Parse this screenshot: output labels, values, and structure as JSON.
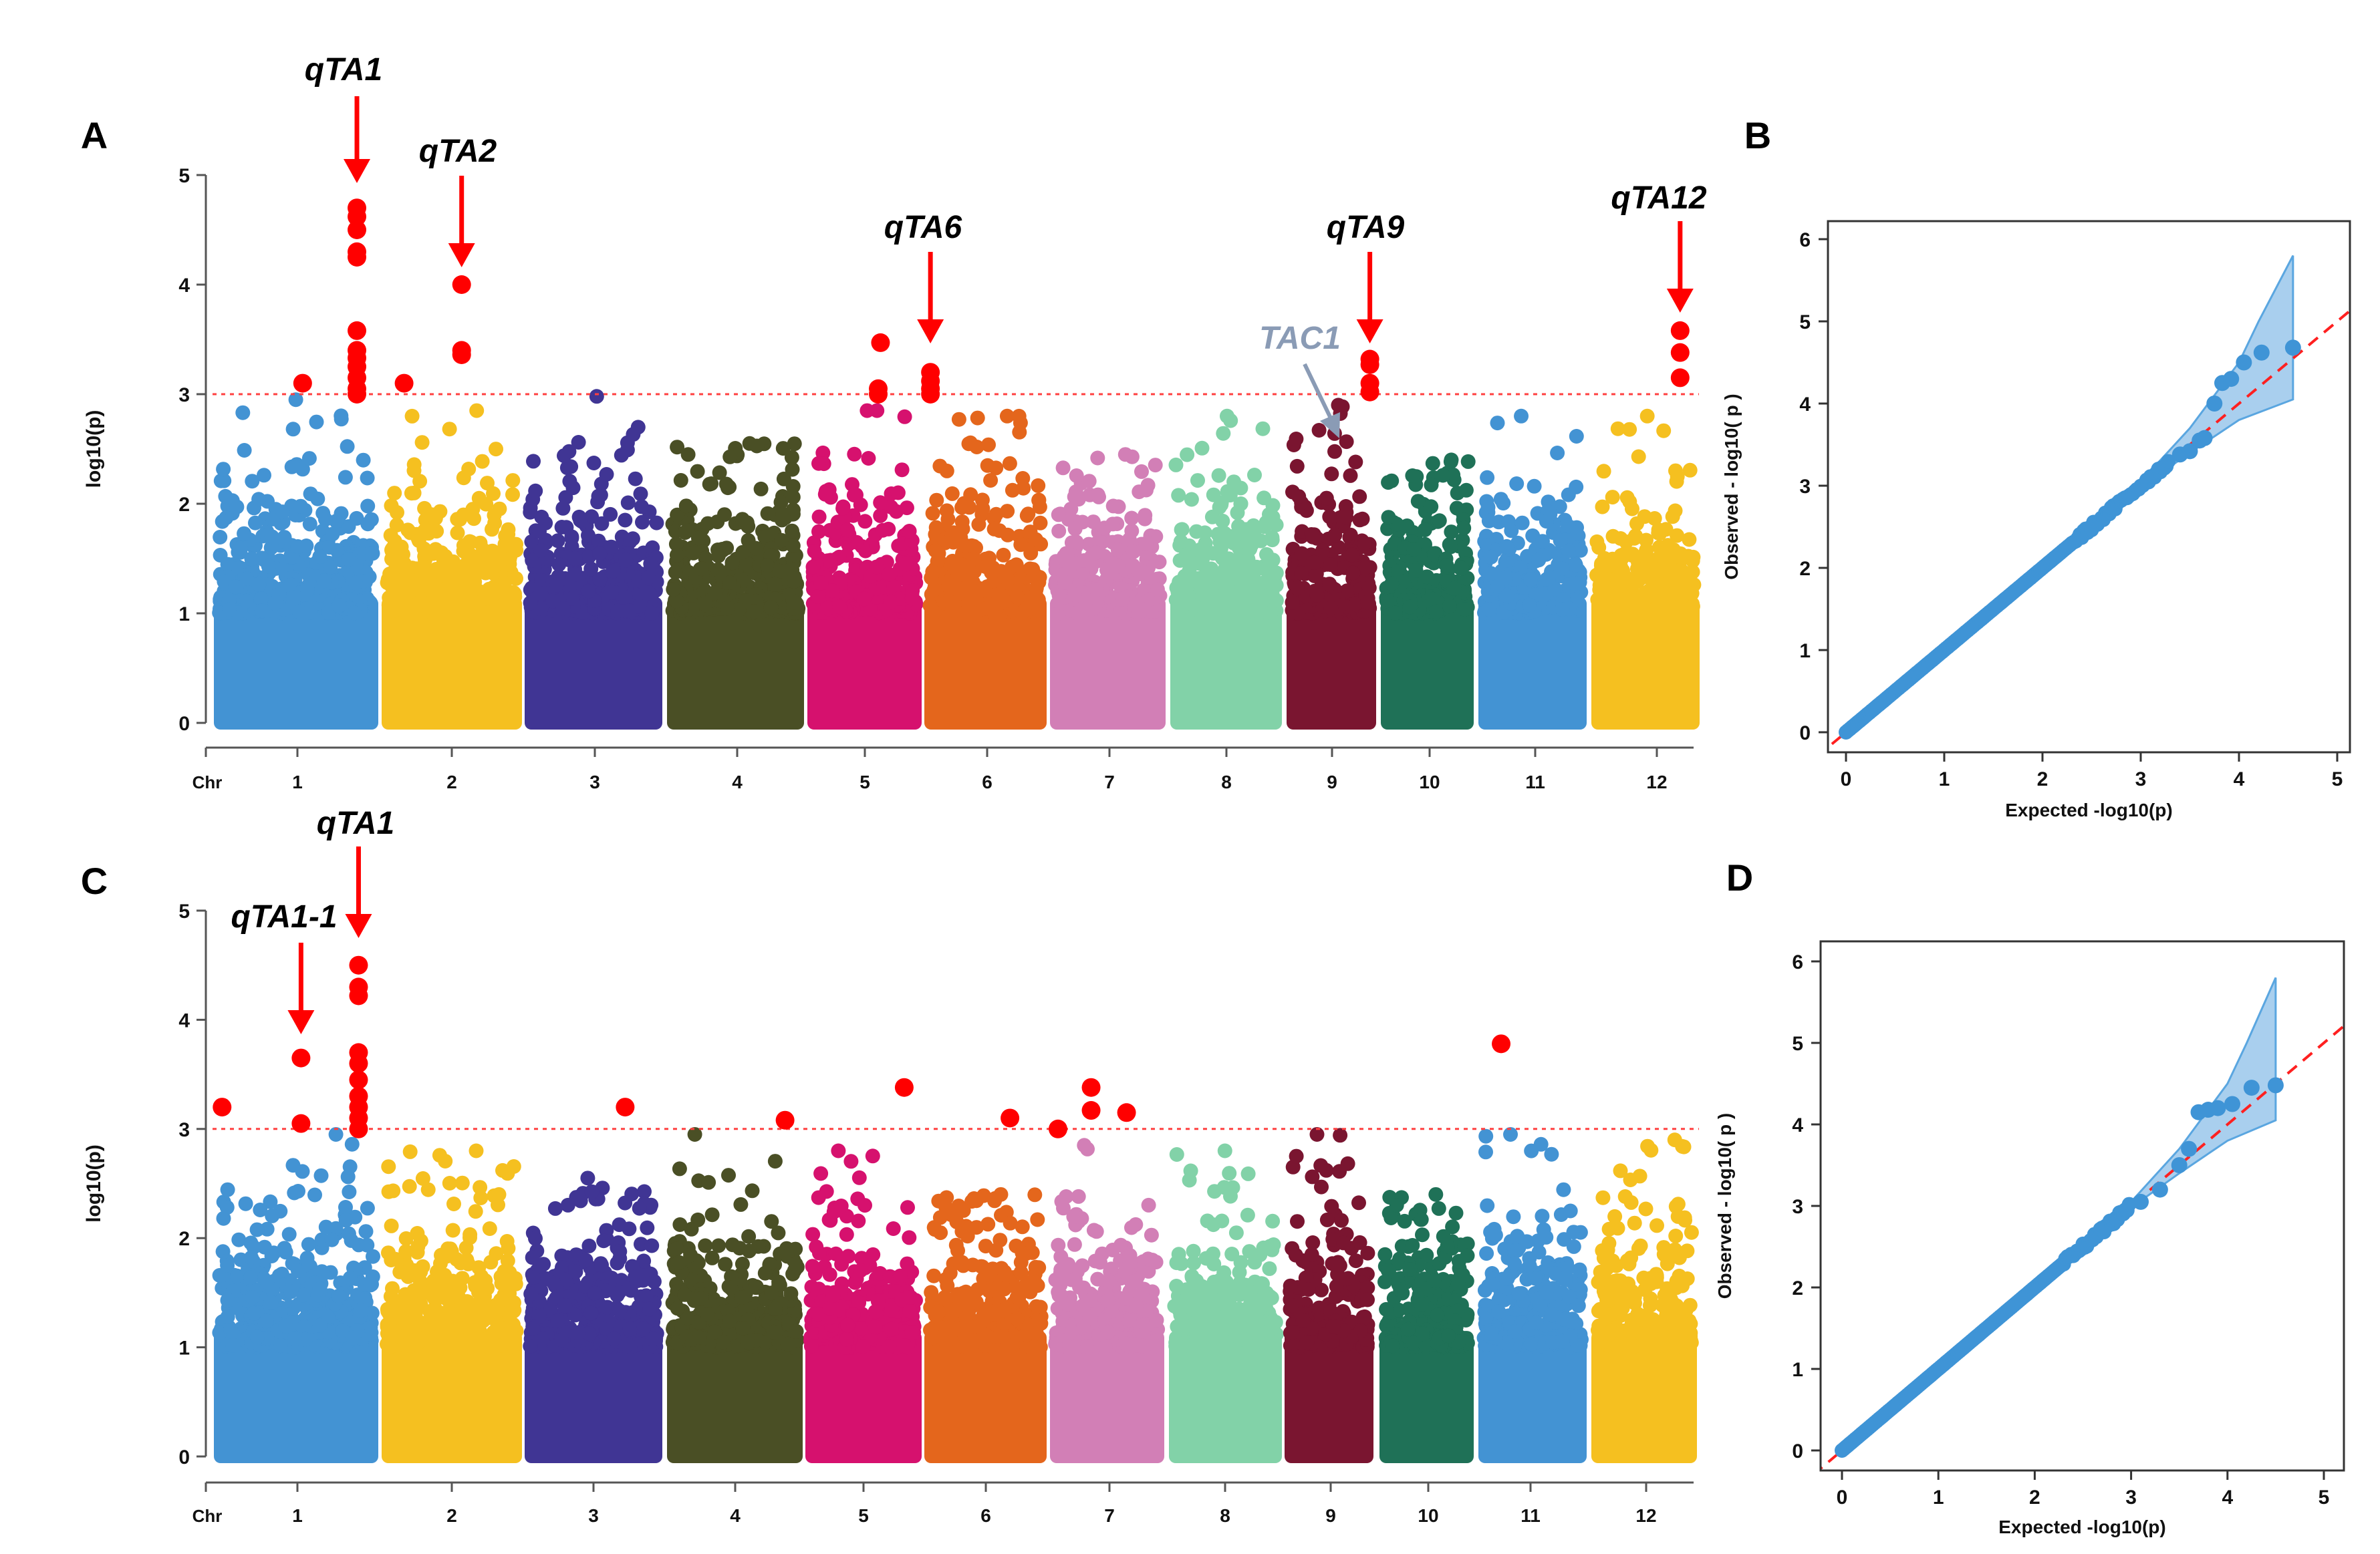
{
  "chart_data": [
    {
      "panel": "A",
      "type": "scatter",
      "subtype": "manhattan",
      "ylabel": "log10(p)",
      "xlabel_prefix": "Chr",
      "ylim": [
        0,
        5
      ],
      "yticks": [
        "0",
        "1",
        "2",
        "3",
        "4",
        "5"
      ],
      "threshold": 3,
      "chromosomes": [
        "1",
        "2",
        "3",
        "4",
        "5",
        "6",
        "7",
        "8",
        "9",
        "10",
        "11",
        "12"
      ],
      "chromosome_colors": [
        "#4393d3",
        "#f5c020",
        "#403594",
        "#4a4f25",
        "#d6116e",
        "#e4661c",
        "#d27fb6",
        "#82d2a8",
        "#7a1530",
        "#1f7157",
        "#4393d3",
        "#f5c020"
      ],
      "max_nonsignificant_y": [
        2.95,
        2.85,
        2.98,
        2.55,
        2.85,
        2.8,
        2.45,
        2.8,
        2.9,
        2.4,
        2.8,
        2.8
      ],
      "significant_color": "#ff0000",
      "significant_points": [
        {
          "chr": 1,
          "pos": 0.54,
          "y": 3.1
        },
        {
          "chr": 1,
          "pos": 0.87,
          "y": 4.7
        },
        {
          "chr": 1,
          "pos": 0.87,
          "y": 4.62
        },
        {
          "chr": 1,
          "pos": 0.87,
          "y": 4.5
        },
        {
          "chr": 1,
          "pos": 0.87,
          "y": 4.3
        },
        {
          "chr": 1,
          "pos": 0.87,
          "y": 4.25
        },
        {
          "chr": 1,
          "pos": 0.87,
          "y": 3.58
        },
        {
          "chr": 1,
          "pos": 0.87,
          "y": 3.4
        },
        {
          "chr": 1,
          "pos": 0.87,
          "y": 3.33
        },
        {
          "chr": 1,
          "pos": 0.87,
          "y": 3.25
        },
        {
          "chr": 1,
          "pos": 0.87,
          "y": 3.15
        },
        {
          "chr": 1,
          "pos": 0.87,
          "y": 3.05
        },
        {
          "chr": 1,
          "pos": 0.87,
          "y": 3.0
        },
        {
          "chr": 2,
          "pos": 0.16,
          "y": 3.1
        },
        {
          "chr": 2,
          "pos": 0.57,
          "y": 4.0
        },
        {
          "chr": 2,
          "pos": 0.57,
          "y": 3.4
        },
        {
          "chr": 2,
          "pos": 0.57,
          "y": 3.36
        },
        {
          "chr": 5,
          "pos": 0.64,
          "y": 3.47
        },
        {
          "chr": 5,
          "pos": 0.62,
          "y": 3.05
        },
        {
          "chr": 5,
          "pos": 0.62,
          "y": 3.0
        },
        {
          "chr": 6,
          "pos": 0.05,
          "y": 3.2
        },
        {
          "chr": 6,
          "pos": 0.05,
          "y": 3.12
        },
        {
          "chr": 6,
          "pos": 0.05,
          "y": 3.05
        },
        {
          "chr": 6,
          "pos": 0.05,
          "y": 3.0
        },
        {
          "chr": 9,
          "pos": 0.93,
          "y": 3.32
        },
        {
          "chr": 9,
          "pos": 0.93,
          "y": 3.27
        },
        {
          "chr": 9,
          "pos": 0.93,
          "y": 3.1
        },
        {
          "chr": 9,
          "pos": 0.93,
          "y": 3.02
        },
        {
          "chr": 12,
          "pos": 0.82,
          "y": 3.58
        },
        {
          "chr": 12,
          "pos": 0.82,
          "y": 3.38
        },
        {
          "chr": 12,
          "pos": 0.82,
          "y": 3.15
        }
      ],
      "annotations": [
        {
          "label": "qTA1",
          "chr": 1,
          "pos": 0.87
        },
        {
          "label": "qTA2",
          "chr": 2,
          "pos": 0.57
        },
        {
          "label": "qTA6",
          "chr": 6,
          "pos": 0.05
        },
        {
          "label": "qTA9",
          "chr": 9,
          "pos": 0.93
        },
        {
          "label": "qTA12",
          "chr": 12,
          "pos": 0.82
        }
      ],
      "gene_annotation": {
        "label": "TAC1",
        "chr": 9,
        "pos": 0.6,
        "y": 2.55,
        "color": "#8a9bb5"
      }
    },
    {
      "panel": "B",
      "type": "scatter",
      "subtype": "qq",
      "xlabel": "Expected -log10(p)",
      "ylabel": "Observed  - log10( p )",
      "xlim": [
        0,
        5
      ],
      "ylim": [
        0,
        6
      ],
      "xticks": [
        "0",
        "1",
        "2",
        "3",
        "4",
        "5"
      ],
      "yticks": [
        "0",
        "1",
        "2",
        "3",
        "4",
        "5",
        "6"
      ],
      "point_color": "#3f94d6",
      "band_color": "#a9cfee",
      "diagonal_color": "#ff2020",
      "diagonal_until": 3.3,
      "tail_points": [
        [
          3.4,
          3.38
        ],
        [
          3.5,
          3.42
        ],
        [
          3.6,
          3.55
        ],
        [
          3.65,
          3.58
        ],
        [
          3.75,
          4.0
        ],
        [
          3.83,
          4.25
        ],
        [
          3.92,
          4.3
        ],
        [
          4.05,
          4.5
        ],
        [
          4.23,
          4.62
        ],
        [
          4.55,
          4.68
        ]
      ],
      "band_upper": [
        [
          2.4,
          2.4
        ],
        [
          3.0,
          3.05
        ],
        [
          3.5,
          3.7
        ],
        [
          4.0,
          4.5
        ],
        [
          4.2,
          5.0
        ],
        [
          4.55,
          5.8
        ]
      ],
      "band_lower": [
        [
          2.4,
          2.4
        ],
        [
          3.0,
          2.98
        ],
        [
          3.5,
          3.4
        ],
        [
          4.0,
          3.8
        ],
        [
          4.55,
          4.05
        ]
      ]
    },
    {
      "panel": "C",
      "type": "scatter",
      "subtype": "manhattan",
      "ylabel": "log10(p)",
      "xlabel_prefix": "Chr",
      "ylim": [
        0,
        5
      ],
      "yticks": [
        "0",
        "1",
        "2",
        "3",
        "4",
        "5"
      ],
      "threshold": 3,
      "chromosomes": [
        "1",
        "2",
        "3",
        "4",
        "5",
        "6",
        "7",
        "8",
        "9",
        "10",
        "11",
        "12"
      ],
      "chromosome_colors": [
        "#4393d3",
        "#f5c020",
        "#403594",
        "#4a4f25",
        "#d6116e",
        "#e4661c",
        "#d27fb6",
        "#82d2a8",
        "#7a1530",
        "#1f7157",
        "#4393d3",
        "#f5c020"
      ],
      "max_nonsignificant_y": [
        2.95,
        2.8,
        2.55,
        2.95,
        2.8,
        2.4,
        2.85,
        2.8,
        2.95,
        2.4,
        2.95,
        2.9
      ],
      "significant_color": "#ff0000",
      "significant_points": [
        {
          "chr": 1,
          "pos": 0.05,
          "y": 3.2
        },
        {
          "chr": 1,
          "pos": 0.53,
          "y": 3.65
        },
        {
          "chr": 1,
          "pos": 0.53,
          "y": 3.05
        },
        {
          "chr": 1,
          "pos": 0.88,
          "y": 4.5
        },
        {
          "chr": 1,
          "pos": 0.88,
          "y": 4.3
        },
        {
          "chr": 1,
          "pos": 0.88,
          "y": 4.22
        },
        {
          "chr": 1,
          "pos": 0.88,
          "y": 3.7
        },
        {
          "chr": 1,
          "pos": 0.88,
          "y": 3.6
        },
        {
          "chr": 1,
          "pos": 0.88,
          "y": 3.45
        },
        {
          "chr": 1,
          "pos": 0.88,
          "y": 3.3
        },
        {
          "chr": 1,
          "pos": 0.88,
          "y": 3.2
        },
        {
          "chr": 1,
          "pos": 0.88,
          "y": 3.1
        },
        {
          "chr": 1,
          "pos": 0.88,
          "y": 3.0
        },
        {
          "chr": 3,
          "pos": 0.73,
          "y": 3.2
        },
        {
          "chr": 4,
          "pos": 0.87,
          "y": 3.08
        },
        {
          "chr": 5,
          "pos": 0.85,
          "y": 3.38
        },
        {
          "chr": 6,
          "pos": 0.7,
          "y": 3.1
        },
        {
          "chr": 7,
          "pos": 0.07,
          "y": 3.0
        },
        {
          "chr": 7,
          "pos": 0.36,
          "y": 3.38
        },
        {
          "chr": 7,
          "pos": 0.36,
          "y": 3.17
        },
        {
          "chr": 7,
          "pos": 0.67,
          "y": 3.15
        },
        {
          "chr": 11,
          "pos": 0.21,
          "y": 3.78
        }
      ],
      "annotations": [
        {
          "label": "qTA1",
          "chr": 1,
          "pos": 0.88
        },
        {
          "label": "qTA1-1",
          "chr": 1,
          "pos": 0.53
        }
      ]
    },
    {
      "panel": "D",
      "type": "scatter",
      "subtype": "qq",
      "xlabel": "Expected -log10(p)",
      "ylabel": "Observed  - log10( p )",
      "xlim": [
        0,
        5
      ],
      "ylim": [
        0,
        6
      ],
      "xticks": [
        "0",
        "1",
        "2",
        "3",
        "4",
        "5"
      ],
      "yticks": [
        "0",
        "1",
        "2",
        "3",
        "4",
        "5",
        "6"
      ],
      "point_color": "#3f94d6",
      "band_color": "#a9cfee",
      "diagonal_color": "#ff2020",
      "diagonal_until": 3.0,
      "tail_points": [
        [
          3.1,
          3.05
        ],
        [
          3.3,
          3.2
        ],
        [
          3.5,
          3.5
        ],
        [
          3.6,
          3.7
        ],
        [
          3.7,
          4.15
        ],
        [
          3.8,
          4.18
        ],
        [
          3.9,
          4.2
        ],
        [
          4.05,
          4.25
        ],
        [
          4.25,
          4.45
        ],
        [
          4.5,
          4.48
        ]
      ],
      "band_upper": [
        [
          2.4,
          2.4
        ],
        [
          3.0,
          3.05
        ],
        [
          3.5,
          3.7
        ],
        [
          4.0,
          4.5
        ],
        [
          4.2,
          5.0
        ],
        [
          4.5,
          5.8
        ]
      ],
      "band_lower": [
        [
          2.4,
          2.4
        ],
        [
          3.0,
          2.98
        ],
        [
          3.5,
          3.4
        ],
        [
          4.0,
          3.8
        ],
        [
          4.5,
          4.05
        ]
      ]
    }
  ]
}
